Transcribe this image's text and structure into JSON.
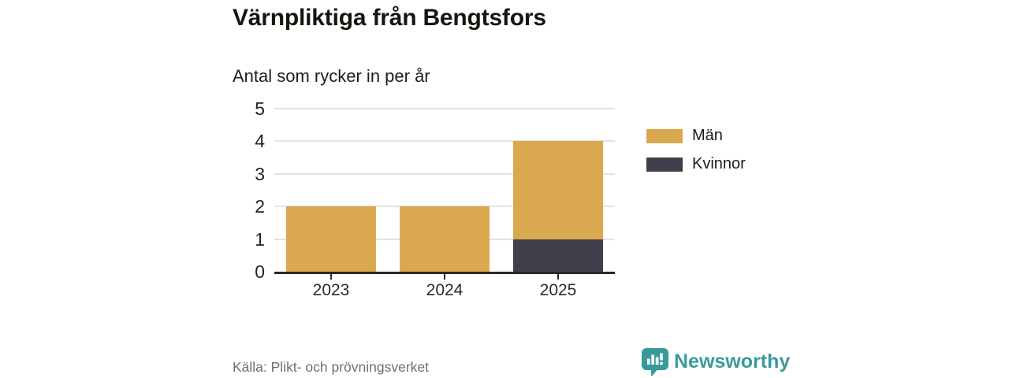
{
  "chart_data": {
    "type": "bar",
    "stacked": true,
    "title": "Värnpliktiga från Bengtsfors",
    "subtitle": "Antal som rycker in per år",
    "categories": [
      "2023",
      "2024",
      "2025"
    ],
    "series": [
      {
        "name": "Män",
        "color": "#DAA94F",
        "values": [
          2,
          2,
          3
        ]
      },
      {
        "name": "Kvinnor",
        "color": "#413F4C",
        "values": [
          0,
          0,
          1
        ]
      }
    ],
    "stack_order_bottom_to_top": [
      "Kvinnor",
      "Män"
    ],
    "totals": [
      2,
      2,
      4
    ],
    "xlabel": "",
    "ylabel": "",
    "ylim": [
      0,
      5
    ],
    "yticks": [
      0,
      1,
      2,
      3,
      4,
      5
    ],
    "grid": true,
    "legend_position": "right"
  },
  "footer": {
    "source": "Källa: Plikt- och prövningsverket",
    "brand": "Newsworthy"
  },
  "colors": {
    "men": "#DAA94F",
    "women": "#413F4C",
    "brand_teal": "#3A9A9B",
    "gridline": "#E3E3E3",
    "axis_line": "#28282A",
    "source_text": "#6F6F75"
  }
}
